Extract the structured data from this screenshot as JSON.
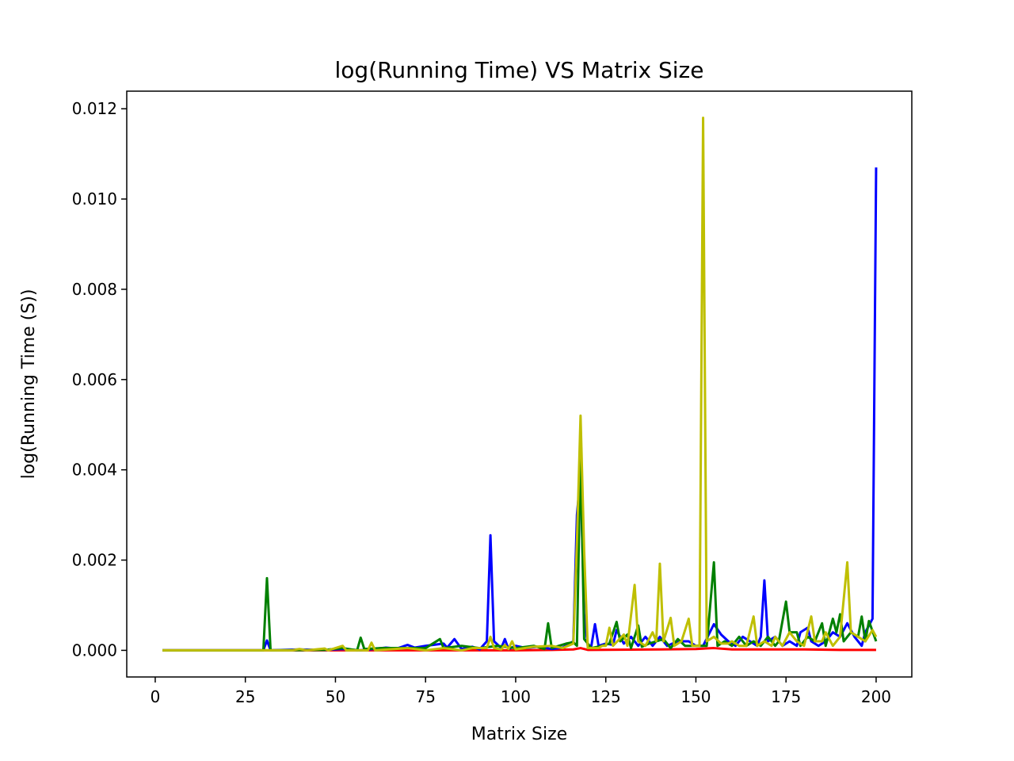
{
  "chart_data": {
    "type": "line",
    "title": "log(Running Time) VS Matrix Size",
    "xlabel": "Matrix Size",
    "ylabel": "log(Running Time (S))",
    "xlim": [
      -7.9,
      209.9
    ],
    "ylim": [
      -0.00059,
      0.01239
    ],
    "xticks": [
      0,
      25,
      50,
      75,
      100,
      125,
      150,
      175,
      200
    ],
    "xtick_labels": [
      "0",
      "25",
      "50",
      "75",
      "100",
      "125",
      "150",
      "175",
      "200"
    ],
    "yticks": [
      0.0,
      0.002,
      0.004,
      0.006,
      0.008,
      0.01,
      0.012
    ],
    "ytick_labels": [
      "0.000",
      "0.002",
      "0.004",
      "0.006",
      "0.008",
      "0.010",
      "0.012"
    ],
    "grid": false,
    "legend": "none",
    "series": [
      {
        "color": "#ff0000",
        "points": [
          [
            2,
            0
          ],
          [
            100,
            0
          ],
          [
            110,
            1e-05
          ],
          [
            116,
            2e-05
          ],
          [
            118,
            5e-05
          ],
          [
            120,
            1e-05
          ],
          [
            140,
            2e-05
          ],
          [
            150,
            3e-05
          ],
          [
            155,
            5e-05
          ],
          [
            160,
            2e-05
          ],
          [
            170,
            2e-05
          ],
          [
            180,
            2e-05
          ],
          [
            190,
            1e-05
          ],
          [
            200,
            1e-05
          ]
        ]
      },
      {
        "color": "#0000ff",
        "points": [
          [
            2,
            0
          ],
          [
            30,
            0
          ],
          [
            31,
            0.00022
          ],
          [
            32,
            0
          ],
          [
            40,
            2e-05
          ],
          [
            47,
            1e-05
          ],
          [
            52,
            3e-05
          ],
          [
            57,
            0
          ],
          [
            64,
            6e-05
          ],
          [
            67,
            4e-05
          ],
          [
            70,
            0.00012
          ],
          [
            72,
            6e-05
          ],
          [
            75,
            0.0001
          ],
          [
            80,
            0.00015
          ],
          [
            81,
            6e-05
          ],
          [
            83,
            0.00025
          ],
          [
            85,
            3e-05
          ],
          [
            88,
            8e-05
          ],
          [
            90,
            2e-05
          ],
          [
            92,
            0.0002
          ],
          [
            93,
            0.00255
          ],
          [
            94,
            0.0002
          ],
          [
            96,
            5e-05
          ],
          [
            97,
            0.00025
          ],
          [
            98,
            3e-05
          ],
          [
            100,
            0.0001
          ],
          [
            103,
            5e-05
          ],
          [
            106,
            8e-05
          ],
          [
            110,
            3e-05
          ],
          [
            113,
            6e-05
          ],
          [
            116,
            0.0002
          ],
          [
            117,
            0.003
          ],
          [
            118,
            0.0039
          ],
          [
            119,
            0.0008
          ],
          [
            120,
            0.0001
          ],
          [
            121,
            0.0001
          ],
          [
            122,
            0.00058
          ],
          [
            123,
            0.0001
          ],
          [
            125,
            0.00015
          ],
          [
            127,
            0.00012
          ],
          [
            128,
            0.00045
          ],
          [
            130,
            0.00015
          ],
          [
            132,
            0.0003
          ],
          [
            134,
            0.0001
          ],
          [
            136,
            0.0003
          ],
          [
            138,
            0.0001
          ],
          [
            140,
            0.0003
          ],
          [
            142,
            0.0001
          ],
          [
            145,
            0.0002
          ],
          [
            148,
            0.0002
          ],
          [
            150,
            0.0001
          ],
          [
            152,
            0.0001
          ],
          [
            155,
            0.00058
          ],
          [
            157,
            0.00035
          ],
          [
            159,
            0.0002
          ],
          [
            161,
            0.0001
          ],
          [
            163,
            0.0003
          ],
          [
            165,
            0.0002
          ],
          [
            167,
            0.0001
          ],
          [
            168,
            0.0003
          ],
          [
            169,
            0.00155
          ],
          [
            170,
            0.0002
          ],
          [
            172,
            0.0003
          ],
          [
            174,
            0.0001
          ],
          [
            176,
            0.0002
          ],
          [
            178,
            0.0001
          ],
          [
            179,
            0.0004
          ],
          [
            181,
            0.0005
          ],
          [
            182,
            0.0002
          ],
          [
            184,
            0.0001
          ],
          [
            186,
            0.0002
          ],
          [
            188,
            0.0004
          ],
          [
            190,
            0.0003
          ],
          [
            192,
            0.0006
          ],
          [
            194,
            0.0003
          ],
          [
            196,
            0.0001
          ],
          [
            197,
            0.0004
          ],
          [
            199,
            0.0007
          ],
          [
            200,
            0.0107
          ]
        ]
      },
      {
        "color": "#008000",
        "points": [
          [
            2,
            0
          ],
          [
            30,
            0
          ],
          [
            31,
            0.0016
          ],
          [
            32,
            0
          ],
          [
            47,
            1e-05
          ],
          [
            52,
            5e-05
          ],
          [
            56,
            0
          ],
          [
            57,
            0.00028
          ],
          [
            58,
            3e-05
          ],
          [
            63,
            5e-05
          ],
          [
            75,
            5e-05
          ],
          [
            79,
            0.00025
          ],
          [
            80,
            5e-05
          ],
          [
            85,
            0.0001
          ],
          [
            90,
            5e-05
          ],
          [
            95,
            0.0001
          ],
          [
            100,
            5e-05
          ],
          [
            105,
            0.0001
          ],
          [
            108,
            3e-05
          ],
          [
            109,
            0.0006
          ],
          [
            110,
            5e-05
          ],
          [
            112,
            0.0001
          ],
          [
            114,
            0.00015
          ],
          [
            116,
            0.00018
          ],
          [
            117,
            0.0001
          ],
          [
            118,
            0.0045
          ],
          [
            119,
            0.00025
          ],
          [
            121,
            5e-05
          ],
          [
            124,
            0.0001
          ],
          [
            126,
            0.00015
          ],
          [
            128,
            0.00063
          ],
          [
            129,
            0.0002
          ],
          [
            131,
            0.00035
          ],
          [
            132,
            5e-05
          ],
          [
            134,
            0.00055
          ],
          [
            135,
            8e-05
          ],
          [
            137,
            0.00015
          ],
          [
            139,
            0.0002
          ],
          [
            141,
            0.00025
          ],
          [
            143,
            5e-05
          ],
          [
            145,
            0.00025
          ],
          [
            147,
            0.0001
          ],
          [
            150,
            0.0001
          ],
          [
            153,
            0.0001
          ],
          [
            155,
            0.00195
          ],
          [
            156,
            0.0001
          ],
          [
            158,
            0.0002
          ],
          [
            160,
            0.0001
          ],
          [
            162,
            0.0003
          ],
          [
            164,
            0.0001
          ],
          [
            166,
            0.0002
          ],
          [
            168,
            0.0001
          ],
          [
            170,
            0.0003
          ],
          [
            172,
            0.0001
          ],
          [
            173,
            0.0002
          ],
          [
            175,
            0.00108
          ],
          [
            176,
            0.0004
          ],
          [
            178,
            0.0004
          ],
          [
            179,
            0.0001
          ],
          [
            181,
            0.0003
          ],
          [
            183,
            0.0002
          ],
          [
            185,
            0.0006
          ],
          [
            186,
            0.0001
          ],
          [
            188,
            0.0007
          ],
          [
            189,
            0.0004
          ],
          [
            190,
            0.0008
          ],
          [
            191,
            0.0002
          ],
          [
            193,
            0.0004
          ],
          [
            195,
            0.0003
          ],
          [
            196,
            0.00075
          ],
          [
            197,
            0.0002
          ],
          [
            198,
            0.00065
          ],
          [
            200,
            0.0002
          ]
        ]
      },
      {
        "color": "#bfbf00",
        "points": [
          [
            2,
            0
          ],
          [
            38,
            0
          ],
          [
            40,
            3e-05
          ],
          [
            42,
            0
          ],
          [
            47,
            4e-05
          ],
          [
            48,
            0
          ],
          [
            52,
            0.0001
          ],
          [
            53,
            0
          ],
          [
            59,
            0
          ],
          [
            60,
            0.00017
          ],
          [
            61,
            0
          ],
          [
            70,
            5e-05
          ],
          [
            75,
            0
          ],
          [
            80,
            5e-05
          ],
          [
            85,
            0
          ],
          [
            88,
            5e-05
          ],
          [
            92,
            5e-05
          ],
          [
            93,
            0.0003
          ],
          [
            94,
            5e-05
          ],
          [
            96,
            2e-05
          ],
          [
            97,
            0.00012
          ],
          [
            98,
            3e-05
          ],
          [
            99,
            0.0002
          ],
          [
            100,
            2e-05
          ],
          [
            105,
            8e-05
          ],
          [
            110,
            0.0001
          ],
          [
            113,
            5e-05
          ],
          [
            116,
            0.00015
          ],
          [
            117,
            0.0024
          ],
          [
            118,
            0.0052
          ],
          [
            119,
            0.0022
          ],
          [
            120,
            5e-05
          ],
          [
            123,
            5e-05
          ],
          [
            124,
            0.0001
          ],
          [
            125,
            0.0001
          ],
          [
            126,
            0.0005
          ],
          [
            127,
            0.0001
          ],
          [
            130,
            0.00035
          ],
          [
            131,
            0.0001
          ],
          [
            133,
            0.00145
          ],
          [
            134,
            0.0002
          ],
          [
            136,
            0.0001
          ],
          [
            138,
            0.0004
          ],
          [
            139,
            0.0002
          ],
          [
            140,
            0.00192
          ],
          [
            141,
            0.0002
          ],
          [
            143,
            0.00072
          ],
          [
            144,
            0.0001
          ],
          [
            146,
            0.0002
          ],
          [
            148,
            0.0007
          ],
          [
            149,
            0.0001
          ],
          [
            151,
            0.0001
          ],
          [
            152,
            0.0118
          ],
          [
            153,
            0.0002
          ],
          [
            155,
            0.0003
          ],
          [
            157,
            0.00015
          ],
          [
            159,
            0.00015
          ],
          [
            160,
            0.0002
          ],
          [
            162,
            0.0001
          ],
          [
            164,
            0.0001
          ],
          [
            166,
            0.00075
          ],
          [
            167,
            0.0001
          ],
          [
            169,
            0.0002
          ],
          [
            171,
            0.0001
          ],
          [
            172,
            0.0003
          ],
          [
            174,
            0.0001
          ],
          [
            176,
            0.0004
          ],
          [
            178,
            0.0002
          ],
          [
            180,
            0.0001
          ],
          [
            182,
            0.00075
          ],
          [
            183,
            0.0002
          ],
          [
            185,
            0.0002
          ],
          [
            186,
            0.0004
          ],
          [
            188,
            0.0001
          ],
          [
            190,
            0.0003
          ],
          [
            192,
            0.00195
          ],
          [
            193,
            0.0004
          ],
          [
            195,
            0.0003
          ],
          [
            197,
            0.0002
          ],
          [
            199,
            0.00045
          ],
          [
            200,
            0.0003
          ]
        ]
      }
    ]
  }
}
